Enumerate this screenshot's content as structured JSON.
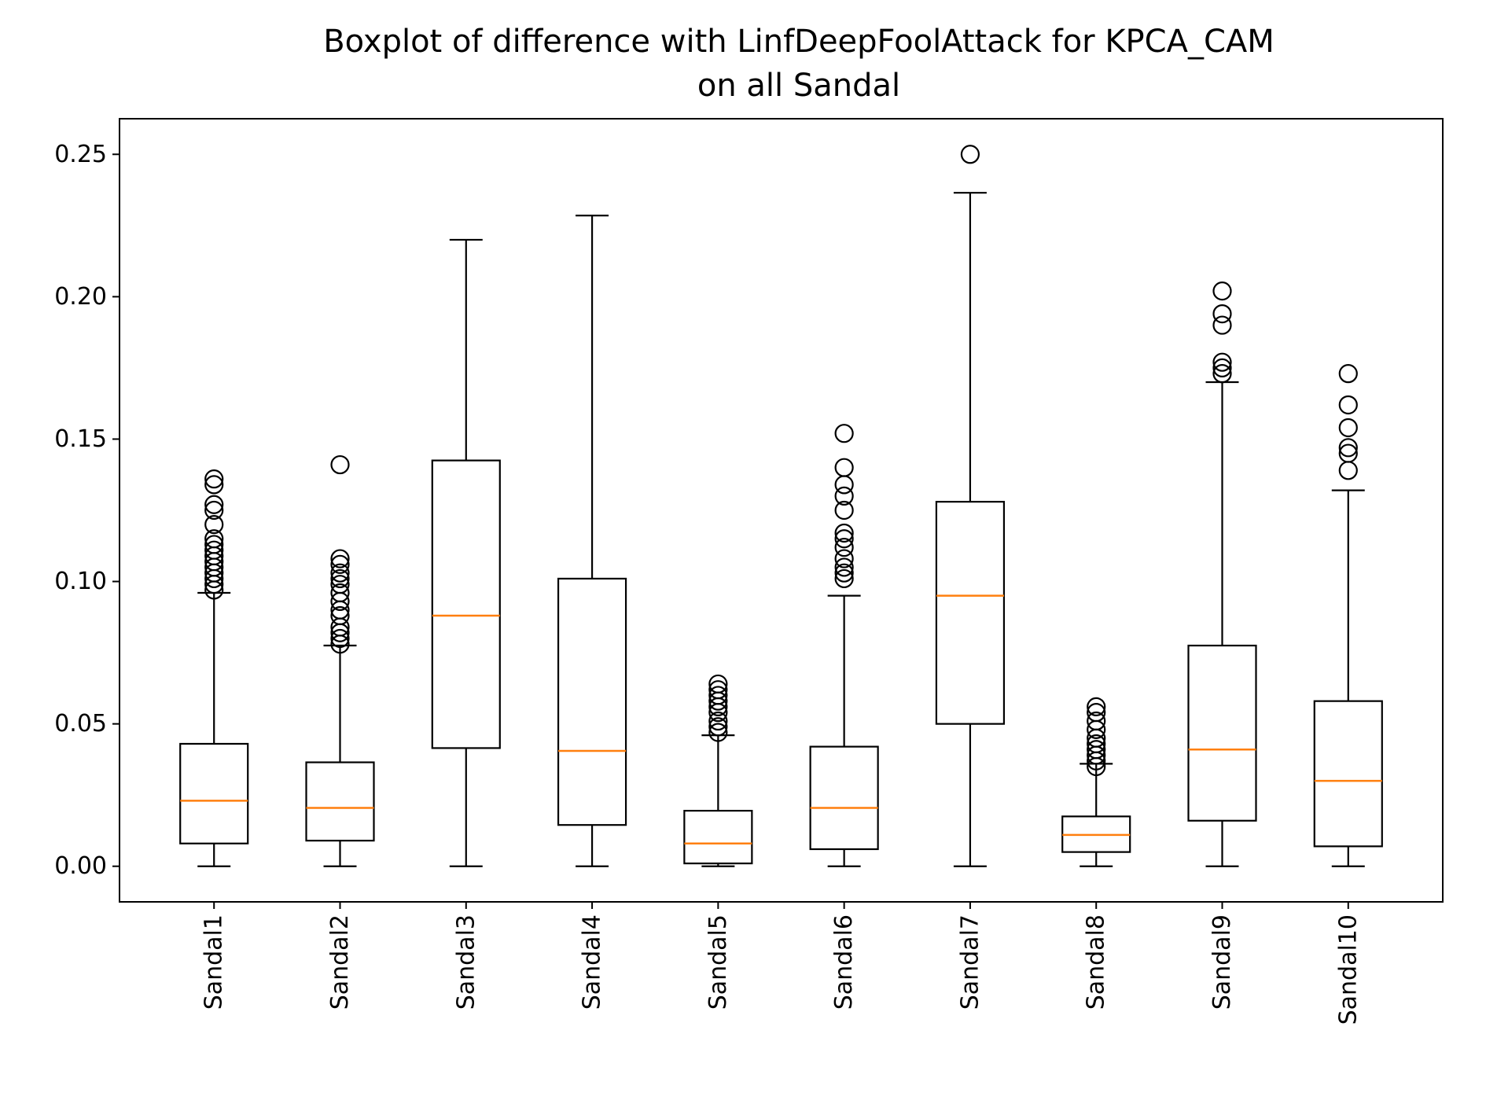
{
  "chart_data": {
    "type": "boxplot",
    "title": "Boxplot of difference with LinfDeepFoolAttack for KPCA_CAM",
    "subtitle": "on all Sandal",
    "xlabel": "",
    "ylabel": "",
    "ylim": [
      -0.0125,
      0.2625
    ],
    "yticks": [
      "0.00",
      "0.05",
      "0.10",
      "0.15",
      "0.20",
      "0.25"
    ],
    "grid": false,
    "colors": {
      "box": "#000000",
      "median": "#ff7f0e",
      "background": "#ffffff"
    },
    "categories": [
      "Sandal1",
      "Sandal2",
      "Sandal3",
      "Sandal4",
      "Sandal5",
      "Sandal6",
      "Sandal7",
      "Sandal8",
      "Sandal9",
      "Sandal10"
    ],
    "boxes": [
      {
        "name": "Sandal1",
        "whislo": 0.0,
        "q1": 0.008,
        "med": 0.023,
        "q3": 0.043,
        "whishi": 0.096,
        "fliers": [
          0.097,
          0.099,
          0.101,
          0.103,
          0.105,
          0.107,
          0.109,
          0.111,
          0.113,
          0.115,
          0.12,
          0.125,
          0.127,
          0.134,
          0.136
        ]
      },
      {
        "name": "Sandal2",
        "whislo": 0.0,
        "q1": 0.009,
        "med": 0.0205,
        "q3": 0.0365,
        "whishi": 0.0775,
        "fliers": [
          0.078,
          0.08,
          0.082,
          0.084,
          0.088,
          0.09,
          0.093,
          0.096,
          0.099,
          0.101,
          0.103,
          0.106,
          0.108,
          0.141
        ]
      },
      {
        "name": "Sandal3",
        "whislo": 0.0,
        "q1": 0.0415,
        "med": 0.088,
        "q3": 0.1425,
        "whishi": 0.22,
        "fliers": []
      },
      {
        "name": "Sandal4",
        "whislo": 0.0,
        "q1": 0.0145,
        "med": 0.0405,
        "q3": 0.101,
        "whishi": 0.2285,
        "fliers": []
      },
      {
        "name": "Sandal5",
        "whislo": 0.0,
        "q1": 0.001,
        "med": 0.008,
        "q3": 0.0195,
        "whishi": 0.046,
        "fliers": [
          0.047,
          0.049,
          0.051,
          0.054,
          0.056,
          0.058,
          0.06,
          0.062,
          0.064
        ]
      },
      {
        "name": "Sandal6",
        "whislo": 0.0,
        "q1": 0.006,
        "med": 0.0205,
        "q3": 0.042,
        "whishi": 0.095,
        "fliers": [
          0.101,
          0.103,
          0.105,
          0.108,
          0.112,
          0.115,
          0.117,
          0.125,
          0.13,
          0.134,
          0.14,
          0.152
        ]
      },
      {
        "name": "Sandal7",
        "whislo": 0.0,
        "q1": 0.05,
        "med": 0.095,
        "q3": 0.128,
        "whishi": 0.2365,
        "fliers": [
          0.25
        ]
      },
      {
        "name": "Sandal8",
        "whislo": 0.0,
        "q1": 0.005,
        "med": 0.011,
        "q3": 0.0175,
        "whishi": 0.036,
        "fliers": [
          0.035,
          0.037,
          0.039,
          0.041,
          0.043,
          0.045,
          0.048,
          0.051,
          0.054,
          0.056
        ]
      },
      {
        "name": "Sandal9",
        "whislo": 0.0,
        "q1": 0.016,
        "med": 0.041,
        "q3": 0.0775,
        "whishi": 0.17,
        "fliers": [
          0.173,
          0.175,
          0.177,
          0.19,
          0.194,
          0.202
        ]
      },
      {
        "name": "Sandal10",
        "whislo": 0.0,
        "q1": 0.007,
        "med": 0.03,
        "q3": 0.058,
        "whishi": 0.132,
        "fliers": [
          0.139,
          0.145,
          0.147,
          0.154,
          0.162,
          0.173
        ]
      }
    ]
  }
}
